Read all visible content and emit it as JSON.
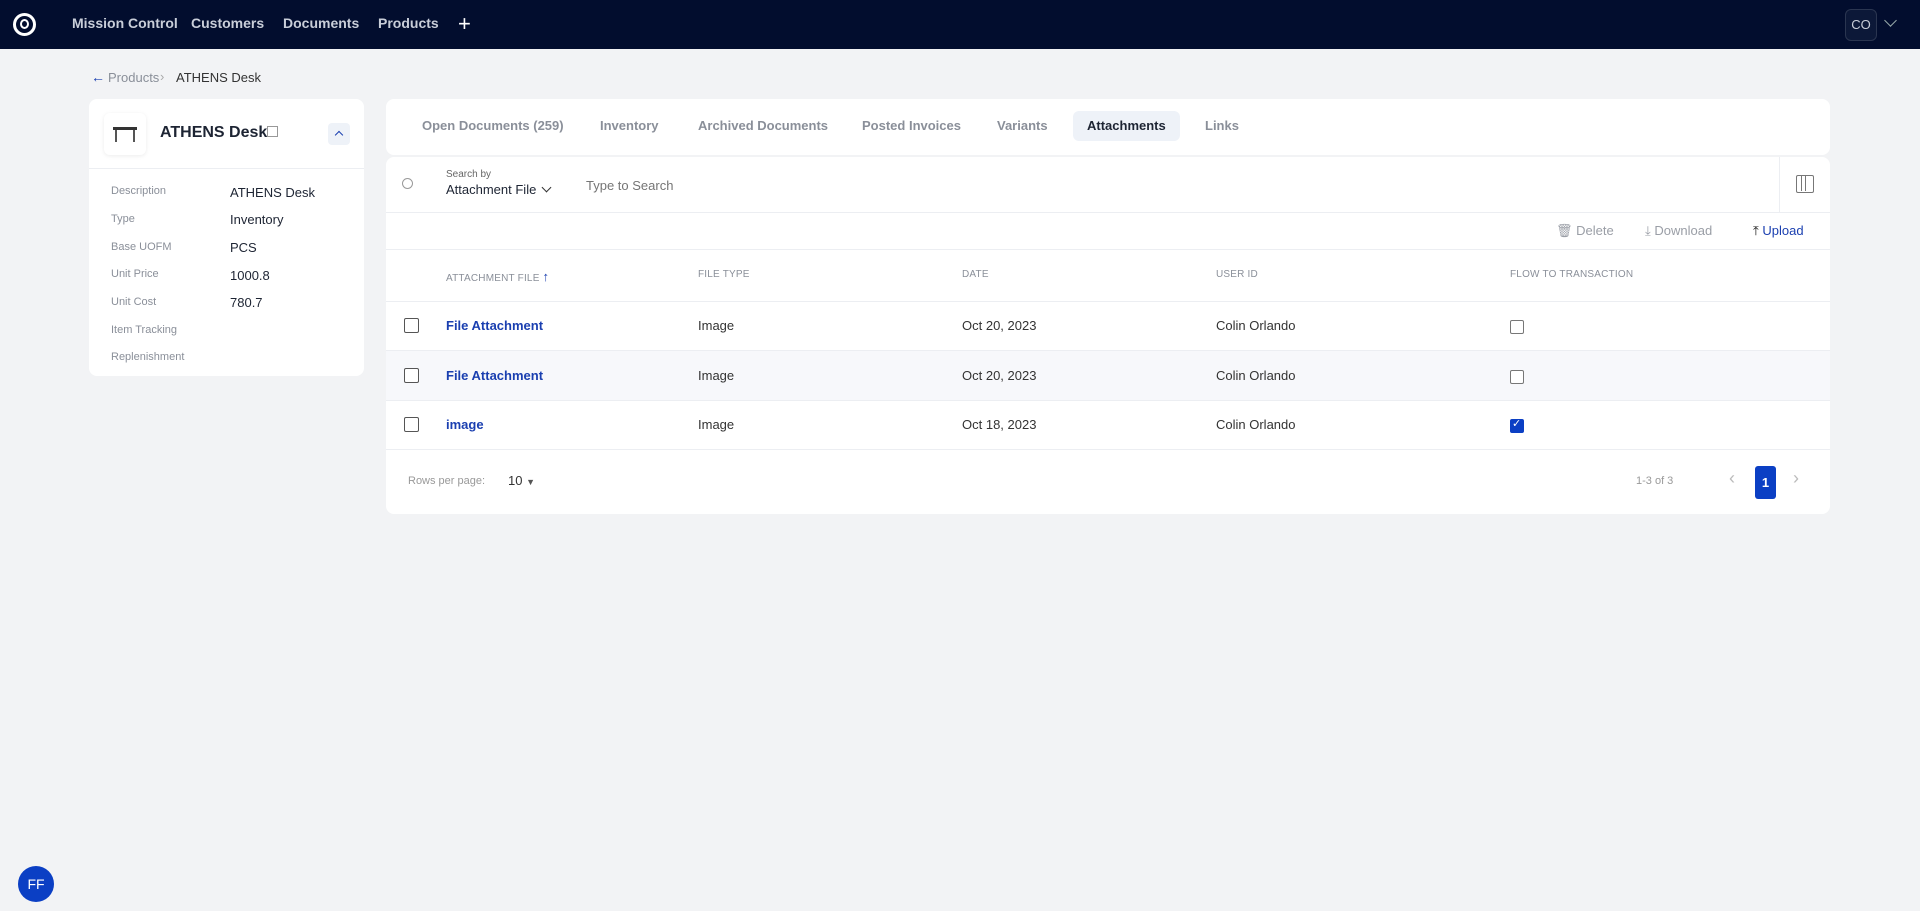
{
  "topbar": {
    "nav": [
      "Mission Control",
      "Customers",
      "Documents",
      "Products"
    ],
    "user_initials": "CO"
  },
  "breadcrumb": {
    "parent": "Products",
    "current": "ATHENS Desk"
  },
  "product": {
    "title": "ATHENS Desk",
    "fields": [
      {
        "label": "Description",
        "value": "ATHENS Desk"
      },
      {
        "label": "Type",
        "value": "Inventory"
      },
      {
        "label": "Base UOFM",
        "value": "PCS"
      },
      {
        "label": "Unit Price",
        "value": "1000.8"
      },
      {
        "label": "Unit Cost",
        "value": "780.7"
      },
      {
        "label": "Item Tracking",
        "value": ""
      },
      {
        "label": "Replenishment",
        "value": ""
      }
    ]
  },
  "tabs": [
    "Open Documents (259)",
    "Inventory",
    "Archived Documents",
    "Posted Invoices",
    "Variants",
    "Attachments",
    "Links"
  ],
  "active_tab": "Attachments",
  "search": {
    "label": "Search by",
    "field": "Attachment File",
    "placeholder": "Type to Search"
  },
  "actions": {
    "delete": "Delete",
    "download": "Download",
    "upload": "Upload"
  },
  "table": {
    "headers": [
      "ATTACHMENT FILE",
      "FILE TYPE",
      "DATE",
      "USER ID",
      "FLOW TO TRANSACTION"
    ],
    "rows": [
      {
        "file": "File Attachment",
        "type": "Image",
        "date": "Oct 20, 2023",
        "user": "Colin Orlando",
        "flow": false
      },
      {
        "file": "File Attachment",
        "type": "Image",
        "date": "Oct 20, 2023",
        "user": "Colin Orlando",
        "flow": false
      },
      {
        "file": "image",
        "type": "Image",
        "date": "Oct 18, 2023",
        "user": "Colin Orlando",
        "flow": true
      }
    ]
  },
  "pagination": {
    "rows_label": "Rows per page:",
    "rows_value": "10",
    "range": "1-3 of 3",
    "page": "1"
  },
  "assistant": {
    "initials": "FF"
  },
  "colors": {
    "topbar": "#020d2e",
    "accent": "#0b3fc4"
  }
}
